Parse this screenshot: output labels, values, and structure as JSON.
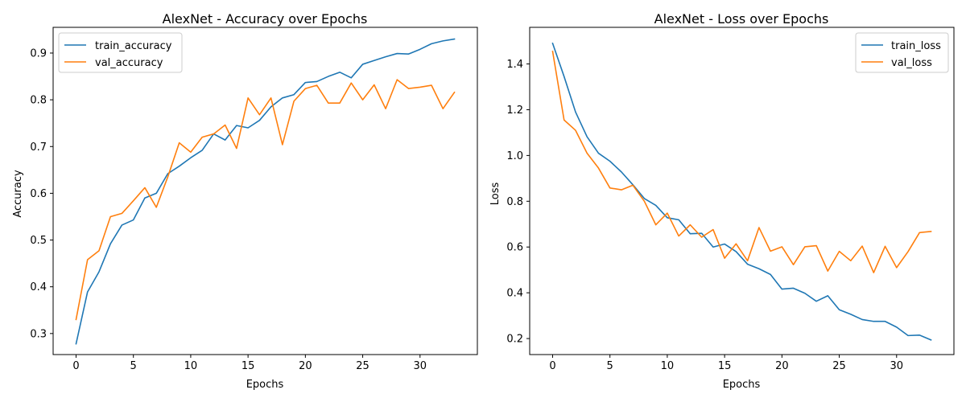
{
  "chart_data": [
    {
      "type": "line",
      "title": "AlexNet - Accuracy over Epochs",
      "xlabel": "Epochs",
      "ylabel": "Accuracy",
      "xlim": [
        -2.0,
        35.0
      ],
      "ylim": [
        0.255,
        0.955
      ],
      "xticks": [
        0,
        5,
        10,
        15,
        20,
        25,
        30
      ],
      "yticks": [
        0.3,
        0.4,
        0.5,
        0.6,
        0.7,
        0.8,
        0.9
      ],
      "grid": false,
      "legend": "top-left",
      "x": [
        0,
        1,
        2,
        3,
        4,
        5,
        6,
        7,
        8,
        9,
        10,
        11,
        12,
        13,
        14,
        15,
        16,
        17,
        18,
        19,
        20,
        21,
        22,
        23,
        24,
        25,
        26,
        27,
        28,
        29,
        30,
        31,
        32,
        33
      ],
      "series": [
        {
          "name": "train_accuracy",
          "color": "#1f77b4",
          "values": [
            0.278,
            0.389,
            0.432,
            0.492,
            0.532,
            0.543,
            0.59,
            0.6,
            0.642,
            0.658,
            0.676,
            0.692,
            0.727,
            0.714,
            0.745,
            0.74,
            0.756,
            0.785,
            0.804,
            0.811,
            0.837,
            0.839,
            0.85,
            0.859,
            0.847,
            0.876,
            0.884,
            0.892,
            0.899,
            0.898,
            0.908,
            0.92,
            0.926,
            0.93
          ]
        },
        {
          "name": "val_accuracy",
          "color": "#ff7f0e",
          "values": [
            0.33,
            0.458,
            0.477,
            0.55,
            0.557,
            0.584,
            0.612,
            0.57,
            0.635,
            0.708,
            0.688,
            0.72,
            0.727,
            0.746,
            0.696,
            0.804,
            0.768,
            0.804,
            0.704,
            0.797,
            0.824,
            0.831,
            0.793,
            0.793,
            0.836,
            0.8,
            0.832,
            0.781,
            0.843,
            0.824,
            0.827,
            0.831,
            0.781,
            0.816
          ]
        }
      ]
    },
    {
      "type": "line",
      "title": "AlexNet - Loss over Epochs",
      "xlabel": "Epochs",
      "ylabel": "Loss",
      "xlim": [
        -2.0,
        35.0
      ],
      "ylim": [
        0.13,
        1.56
      ],
      "xticks": [
        0,
        5,
        10,
        15,
        20,
        25,
        30
      ],
      "yticks": [
        0.2,
        0.4,
        0.6,
        0.8,
        1.0,
        1.2,
        1.4
      ],
      "grid": false,
      "legend": "top-right",
      "x": [
        0,
        1,
        2,
        3,
        4,
        5,
        6,
        7,
        8,
        9,
        10,
        11,
        12,
        13,
        14,
        15,
        16,
        17,
        18,
        19,
        20,
        21,
        22,
        23,
        24,
        25,
        26,
        27,
        28,
        29,
        30,
        31,
        32,
        33
      ],
      "series": [
        {
          "name": "train_loss",
          "color": "#1f77b4",
          "values": [
            1.49,
            1.345,
            1.19,
            1.082,
            1.01,
            0.975,
            0.928,
            0.872,
            0.812,
            0.782,
            0.728,
            0.719,
            0.658,
            0.66,
            0.6,
            0.613,
            0.58,
            0.525,
            0.505,
            0.48,
            0.416,
            0.42,
            0.398,
            0.363,
            0.387,
            0.326,
            0.306,
            0.283,
            0.275,
            0.275,
            0.25,
            0.213,
            0.215,
            0.194
          ]
        },
        {
          "name": "val_loss",
          "color": "#ff7f0e",
          "values": [
            1.455,
            1.155,
            1.11,
            1.01,
            0.945,
            0.858,
            0.85,
            0.87,
            0.8,
            0.697,
            0.748,
            0.648,
            0.697,
            0.643,
            0.676,
            0.551,
            0.614,
            0.54,
            0.685,
            0.582,
            0.601,
            0.523,
            0.601,
            0.606,
            0.495,
            0.581,
            0.54,
            0.604,
            0.488,
            0.603,
            0.51,
            0.58,
            0.663,
            0.668
          ]
        }
      ]
    }
  ]
}
